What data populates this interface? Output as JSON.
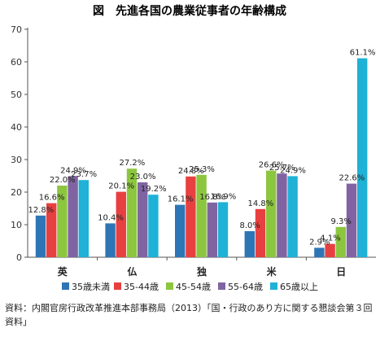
{
  "chart_data": {
    "type": "bar",
    "title": "図　先進各国の農業従事者の年齢構成",
    "categories": [
      "英",
      "仏",
      "独",
      "米",
      "日"
    ],
    "ylim": [
      0,
      70
    ],
    "yticks": [
      0,
      10,
      20,
      30,
      40,
      50,
      60,
      70
    ],
    "grid": false,
    "legend_position": "bottom",
    "series": [
      {
        "name": "35歳未満",
        "color": "#2e75b6",
        "values": [
          12.8,
          10.4,
          16.1,
          8.0,
          2.9
        ]
      },
      {
        "name": "35-44歳",
        "color": "#e84040",
        "values": [
          16.6,
          20.1,
          24.8,
          14.8,
          4.1
        ]
      },
      {
        "name": "45-54歳",
        "color": "#8cc63f",
        "values": [
          22.0,
          27.2,
          25.3,
          26.6,
          9.3
        ]
      },
      {
        "name": "55-64歳",
        "color": "#8064a2",
        "values": [
          24.9,
          23.0,
          16.8,
          25.7,
          22.6
        ]
      },
      {
        "name": "65歳以上",
        "color": "#1fb1d6",
        "values": [
          23.7,
          19.2,
          16.9,
          24.9,
          61.1
        ]
      }
    ],
    "data_labels": [
      [
        "12.8%",
        "16.6%",
        "22.0%",
        "24.9%",
        "23.7%"
      ],
      [
        "10.4%",
        "20.1%",
        "27.2%",
        "23.0%",
        "19.2%"
      ],
      [
        "16.1%",
        "24.8%",
        "25.3%",
        "16.8%",
        "16.9%"
      ],
      [
        "8.0%",
        "14.8%",
        "26.6%",
        "25.7%",
        "24.9%"
      ],
      [
        "2.9%",
        "4.1%",
        "9.3%",
        "22.6%",
        "61.1%"
      ]
    ]
  },
  "source_note": "資料：内閣官房行政改革推進本部事務局（2013）「国・行政のあり方に関する懇談会第３回資料」"
}
